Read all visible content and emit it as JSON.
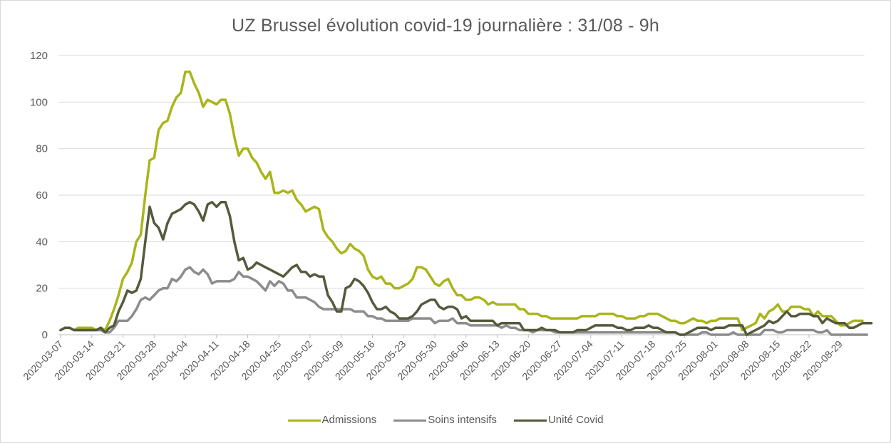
{
  "chart_data": {
    "type": "line",
    "title": "UZ Brussel évolution covid-19 journalière : 31/08 - 9h",
    "xlabel": "",
    "ylabel": "",
    "ylim": [
      0,
      120
    ],
    "yticks": [
      0,
      20,
      40,
      60,
      80,
      100,
      120
    ],
    "grid": true,
    "legend_position": "bottom",
    "x_start": "2020-03-07",
    "x_end": "2020-08-31",
    "x_tick_labels": [
      "2020-03-07",
      "2020-03-14",
      "2020-03-21",
      "2020-03-28",
      "2020-04-04",
      "2020-04-11",
      "2020-04-18",
      "2020-04-25",
      "2020-05-02",
      "2020-05-09",
      "2020-05-16",
      "2020-05-23",
      "2020-05-30",
      "2020-06-06",
      "2020-06-13",
      "2020-06-20",
      "2020-06-27",
      "2020-07-04",
      "2020-07-11",
      "2020-07-18",
      "2020-07-25",
      "2020-08-01",
      "2020-08-08",
      "2020-08-15",
      "2020-08-22",
      "2020-08-29"
    ],
    "series": [
      {
        "name": "Admissions",
        "color": "#a9b51a",
        "values": [
          2,
          3,
          3,
          2,
          3,
          3,
          3,
          3,
          2,
          3,
          2,
          6,
          11,
          17,
          24,
          27,
          31,
          40,
          43,
          60,
          75,
          76,
          88,
          91,
          92,
          98,
          102,
          104,
          113,
          113,
          108,
          104,
          98,
          101,
          100,
          99,
          101,
          101,
          95,
          85,
          77,
          80,
          80,
          76,
          74,
          70,
          67,
          70,
          61,
          61,
          62,
          61,
          62,
          58,
          56,
          53,
          54,
          55,
          54,
          45,
          42,
          40,
          37,
          35,
          36,
          39,
          37,
          36,
          34,
          28,
          25,
          24,
          25,
          22,
          22,
          20,
          20,
          21,
          22,
          24,
          29,
          29,
          28,
          25,
          22,
          21,
          23,
          24,
          20,
          17,
          17,
          15,
          15,
          16,
          16,
          15,
          13,
          14,
          13,
          13,
          13,
          13,
          13,
          11,
          11,
          9,
          9,
          9,
          8,
          8,
          7,
          7,
          7,
          7,
          7,
          7,
          7,
          8,
          8,
          8,
          8,
          9,
          9,
          9,
          9,
          8,
          8,
          7,
          7,
          7,
          8,
          8,
          9,
          9,
          9,
          8,
          7,
          6,
          6,
          5,
          5,
          6,
          7,
          6,
          6,
          5,
          6,
          6,
          7,
          7,
          7,
          7,
          7,
          2,
          3,
          4,
          5,
          9,
          7,
          10,
          11,
          13,
          10,
          10,
          12,
          12,
          12,
          11,
          11,
          8,
          10,
          8,
          8,
          8,
          6,
          4,
          4,
          5,
          6,
          6,
          6
        ]
      },
      {
        "name": "Soins intensifs",
        "color": "#8c8c8c",
        "values": [
          2,
          3,
          3,
          2,
          2,
          2,
          2,
          2,
          2,
          2,
          1,
          1,
          3,
          6,
          6,
          6,
          8,
          11,
          15,
          16,
          15,
          17,
          19,
          20,
          20,
          24,
          23,
          25,
          28,
          29,
          27,
          26,
          28,
          26,
          22,
          23,
          23,
          23,
          23,
          24,
          27,
          25,
          25,
          24,
          23,
          21,
          19,
          23,
          21,
          23,
          22,
          19,
          19,
          16,
          16,
          16,
          15,
          14,
          12,
          11,
          11,
          11,
          11,
          11,
          11,
          11,
          10,
          10,
          10,
          8,
          8,
          7,
          7,
          6,
          6,
          6,
          6,
          6,
          6,
          7,
          7,
          7,
          7,
          7,
          5,
          6,
          6,
          6,
          7,
          5,
          5,
          5,
          4,
          4,
          4,
          4,
          4,
          4,
          4,
          3,
          4,
          3,
          3,
          2,
          2,
          2,
          1,
          2,
          2,
          2,
          2,
          1,
          1,
          1,
          1,
          1,
          1,
          1,
          1,
          1,
          1,
          1,
          1,
          1,
          1,
          1,
          1,
          1,
          1,
          1,
          1,
          1,
          1,
          1,
          1,
          1,
          1,
          1,
          1,
          0,
          0,
          0,
          0,
          0,
          1,
          1,
          0,
          0,
          0,
          0,
          0,
          1,
          0,
          0,
          0,
          0,
          0,
          0,
          2,
          2,
          2,
          1,
          1,
          2,
          2,
          2,
          2,
          2,
          2,
          2,
          1,
          1,
          2,
          0,
          0,
          0,
          0,
          0,
          0,
          0,
          0,
          0
        ]
      },
      {
        "name": "Unité Covid",
        "color": "#545a3c",
        "values": [
          2,
          3,
          3,
          2,
          2,
          2,
          2,
          2,
          2,
          3,
          1,
          3,
          4,
          10,
          14,
          19,
          18,
          19,
          24,
          40,
          55,
          48,
          46,
          41,
          48,
          52,
          53,
          54,
          56,
          57,
          56,
          53,
          49,
          56,
          57,
          55,
          57,
          57,
          51,
          40,
          32,
          33,
          28,
          29,
          31,
          30,
          29,
          28,
          27,
          26,
          25,
          27,
          29,
          30,
          27,
          27,
          25,
          26,
          25,
          25,
          17,
          14,
          10,
          10,
          20,
          21,
          24,
          23,
          21,
          18,
          14,
          11,
          11,
          12,
          10,
          9,
          7,
          7,
          7,
          8,
          10,
          13,
          14,
          15,
          15,
          12,
          11,
          12,
          12,
          11,
          7,
          8,
          6,
          6,
          6,
          6,
          6,
          6,
          4,
          5,
          5,
          5,
          5,
          5,
          2,
          2,
          2,
          2,
          3,
          2,
          2,
          2,
          1,
          1,
          1,
          1,
          2,
          2,
          2,
          3,
          4,
          4,
          4,
          4,
          4,
          3,
          3,
          2,
          2,
          3,
          3,
          3,
          4,
          3,
          3,
          2,
          1,
          1,
          1,
          0,
          0,
          1,
          2,
          3,
          3,
          3,
          2,
          3,
          3,
          3,
          4,
          4,
          4,
          4,
          0,
          1,
          2,
          3,
          4,
          6,
          5,
          6,
          8,
          10,
          8,
          8,
          9,
          9,
          9,
          8,
          8,
          5,
          7,
          6,
          5,
          5,
          5,
          3,
          3,
          4,
          5,
          5,
          5
        ]
      }
    ]
  }
}
